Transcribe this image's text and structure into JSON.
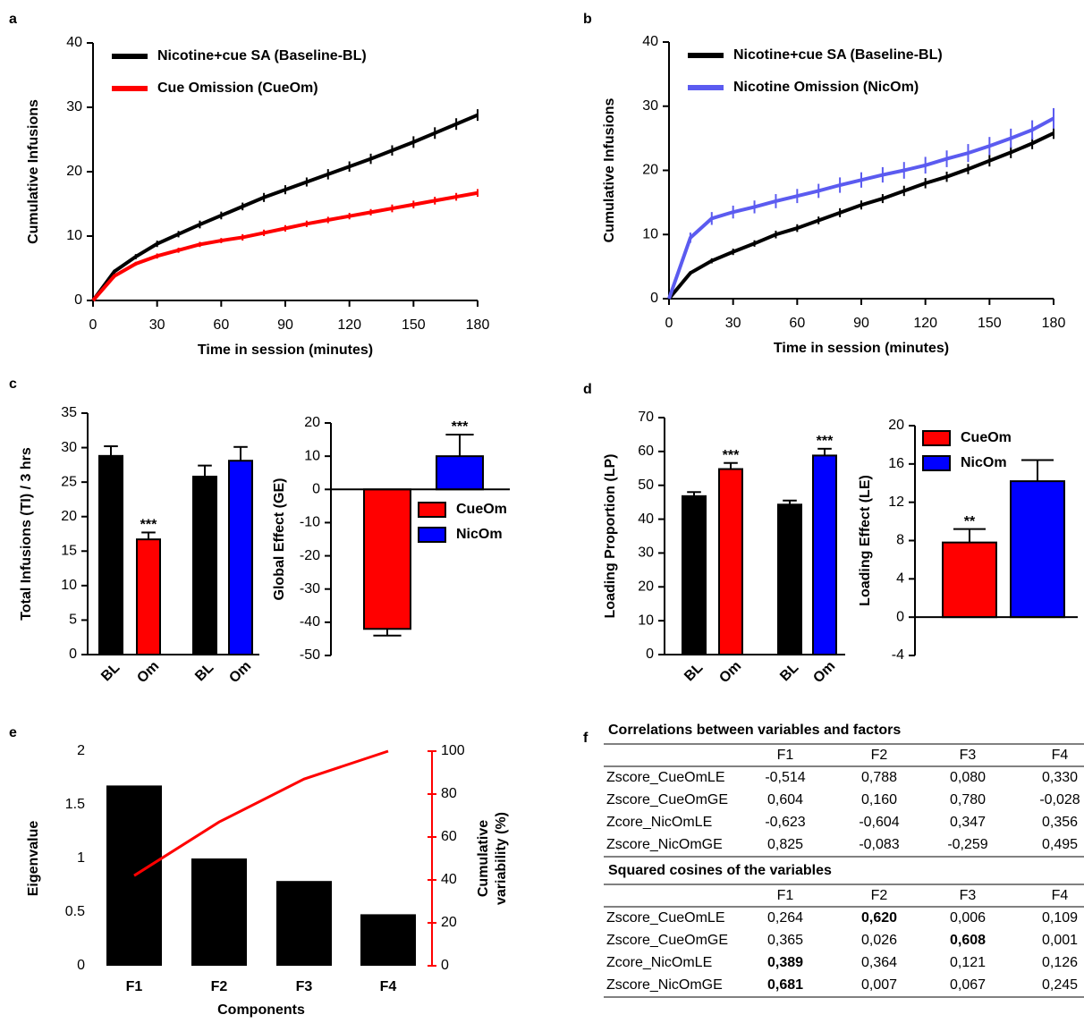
{
  "chart_data": [
    {
      "type": "line",
      "panel": "a",
      "xlabel": "Time in session (minutes)",
      "ylabel": "Cumulative Infusions",
      "x": [
        0,
        10,
        20,
        30,
        40,
        50,
        60,
        70,
        80,
        90,
        100,
        110,
        120,
        130,
        140,
        150,
        160,
        170,
        180
      ],
      "xlim": [
        0,
        180
      ],
      "xticks": [
        0,
        30,
        60,
        90,
        120,
        150,
        180
      ],
      "ylim": [
        0,
        40
      ],
      "yticks": [
        0,
        10,
        20,
        30,
        40
      ],
      "legend": "upper left",
      "series": [
        {
          "name": "Nicotine+cue SA (Baseline-BL)",
          "color": "#000000",
          "values": [
            0,
            4.5,
            6.8,
            8.8,
            10.3,
            11.8,
            13.2,
            14.6,
            16,
            17.2,
            18.4,
            19.6,
            20.8,
            22,
            23.3,
            24.6,
            26,
            27.4,
            28.8
          ],
          "errors": [
            0,
            0.3,
            0.4,
            0.5,
            0.5,
            0.6,
            0.6,
            0.6,
            0.7,
            0.7,
            0.7,
            0.8,
            0.8,
            0.8,
            0.8,
            0.9,
            0.9,
            0.9,
            0.9
          ]
        },
        {
          "name": "Cue Omission (CueOm)",
          "color": "#ff0000",
          "values": [
            0,
            3.8,
            5.7,
            6.9,
            7.8,
            8.7,
            9.3,
            9.8,
            10.5,
            11.2,
            11.9,
            12.5,
            13.1,
            13.7,
            14.3,
            14.9,
            15.5,
            16.1,
            16.7
          ],
          "errors": [
            0,
            0.3,
            0.3,
            0.4,
            0.4,
            0.4,
            0.4,
            0.5,
            0.5,
            0.5,
            0.5,
            0.5,
            0.5,
            0.5,
            0.6,
            0.6,
            0.6,
            0.6,
            0.6
          ]
        }
      ]
    },
    {
      "type": "line",
      "panel": "b",
      "xlabel": "Time in session (minutes)",
      "ylabel": "Cumulative Infusions",
      "x": [
        0,
        10,
        20,
        30,
        40,
        50,
        60,
        70,
        80,
        90,
        100,
        110,
        120,
        130,
        140,
        150,
        160,
        170,
        180
      ],
      "xlim": [
        0,
        180
      ],
      "xticks": [
        0,
        30,
        60,
        90,
        120,
        150,
        180
      ],
      "ylim": [
        0,
        40
      ],
      "yticks": [
        0,
        10,
        20,
        30,
        40
      ],
      "legend": "upper left",
      "series": [
        {
          "name": "Nicotine+cue SA (Baseline-BL)",
          "color": "#000000",
          "values": [
            0,
            4,
            5.9,
            7.3,
            8.6,
            10,
            11,
            12.2,
            13.4,
            14.6,
            15.6,
            16.8,
            18,
            19,
            20.2,
            21.5,
            22.8,
            24.2,
            25.8
          ],
          "errors": [
            0,
            0.3,
            0.4,
            0.5,
            0.5,
            0.6,
            0.6,
            0.6,
            0.7,
            0.7,
            0.7,
            0.8,
            0.8,
            0.8,
            0.8,
            0.9,
            0.9,
            0.9,
            0.9
          ]
        },
        {
          "name": "Nicotine Omission (NicOm)",
          "color": "#5b5bf0",
          "values": [
            0,
            9.5,
            12.5,
            13.5,
            14.3,
            15.2,
            16,
            16.8,
            17.7,
            18.5,
            19.3,
            20,
            20.8,
            21.8,
            22.7,
            23.8,
            25,
            26.3,
            28.1
          ],
          "errors": [
            0,
            0.8,
            1,
            1,
            1,
            1.1,
            1.1,
            1.1,
            1.2,
            1.2,
            1.2,
            1.3,
            1.3,
            1.3,
            1.4,
            1.4,
            1.5,
            1.5,
            1.6
          ]
        }
      ]
    },
    {
      "type": "bar",
      "panel": "c",
      "ylabel": "Total Infusions (TI) / 3 hrs",
      "categories": [
        "BL",
        "Om",
        "BL",
        "Om"
      ],
      "values": [
        28.8,
        16.7,
        25.8,
        28.1
      ],
      "errors": [
        1.4,
        1.0,
        1.6,
        2.0
      ],
      "colors": [
        "#000000",
        "#ff0000",
        "#000000",
        "#0000ff"
      ],
      "ylim": [
        0,
        35
      ],
      "yticks": [
        0,
        5,
        10,
        15,
        20,
        25,
        30,
        35
      ],
      "annotations": [
        {
          "index": 1,
          "text": "***"
        }
      ]
    },
    {
      "type": "bar",
      "ylabel": "Global Effect (GE)",
      "legend": "center right",
      "series": [
        {
          "name": "CueOm",
          "color": "#ff0000",
          "values": [
            -42
          ],
          "errors": [
            2
          ]
        },
        {
          "name": "NicOm",
          "color": "#0000ff",
          "values": [
            10
          ],
          "errors": [
            6.5
          ]
        }
      ],
      "ylim": [
        -50,
        20
      ],
      "yticks": [
        -50,
        -40,
        -30,
        -20,
        -10,
        0,
        10,
        20
      ],
      "annotations": [
        {
          "index": 1,
          "text": "***"
        }
      ]
    },
    {
      "type": "bar",
      "panel": "d",
      "ylabel": "Loading Proportion (LP)",
      "categories": [
        "BL",
        "Om",
        "BL",
        "Om"
      ],
      "values": [
        46.8,
        54.8,
        44.3,
        58.8
      ],
      "errors": [
        1.2,
        1.8,
        1.2,
        2.0
      ],
      "colors": [
        "#000000",
        "#ff0000",
        "#000000",
        "#0000ff"
      ],
      "ylim": [
        0,
        70
      ],
      "yticks": [
        0,
        10,
        20,
        30,
        40,
        50,
        60,
        70
      ],
      "annotations": [
        {
          "index": 1,
          "text": "***"
        },
        {
          "index": 3,
          "text": "***"
        }
      ]
    },
    {
      "type": "bar",
      "ylabel": "Loading Effect (LE)",
      "legend": "upper left",
      "series": [
        {
          "name": "CueOm",
          "color": "#ff0000",
          "values": [
            7.8
          ],
          "errors": [
            1.4
          ]
        },
        {
          "name": "NicOm",
          "color": "#0000ff",
          "values": [
            14.2
          ],
          "errors": [
            2.2
          ]
        }
      ],
      "ylim": [
        -4,
        20
      ],
      "yticks": [
        -4,
        0,
        4,
        8,
        12,
        16,
        20
      ],
      "annotations": [
        {
          "index": 0,
          "text": "**"
        }
      ]
    },
    {
      "type": "bar_line",
      "panel": "e",
      "xlabel": "Components",
      "ylabel": "Eigenvalue",
      "y2label": [
        "Cumulative",
        "variability (%)"
      ],
      "categories": [
        "F1",
        "F2",
        "F3",
        "F4"
      ],
      "series": [
        {
          "color": "#000000",
          "values": [
            1.68,
            1.0,
            0.79,
            0.48
          ]
        },
        {
          "color": "#ff0000",
          "values": [
            42,
            67,
            87,
            100
          ],
          "axis": "y2"
        }
      ],
      "ylim": [
        0,
        2
      ],
      "yticks": [
        0,
        0.5,
        1,
        1.5,
        2
      ],
      "y2lim": [
        0,
        100
      ],
      "y2ticks": [
        0,
        20,
        40,
        60,
        80,
        100
      ]
    }
  ],
  "table_panel": {
    "panel": "f",
    "tables": [
      {
        "title": "Correlations between variables and factors",
        "header": [
          "F1",
          "F2",
          "F3",
          "F4"
        ],
        "rows": [
          {
            "label": "Zscore_CueOmLE",
            "cells": [
              "-0,514",
              "0,788",
              "0,080",
              "0,330"
            ]
          },
          {
            "label": "Zscore_CueOmGE",
            "cells": [
              "0,604",
              "0,160",
              "0,780",
              "-0,028"
            ]
          },
          {
            "label": "Zcore_NicOmLE",
            "cells": [
              "-0,623",
              "-0,604",
              "0,347",
              "0,356"
            ]
          },
          {
            "label": "Zscore_NicOmGE",
            "cells": [
              "0,825",
              "-0,083",
              "-0,259",
              "0,495"
            ]
          }
        ]
      },
      {
        "title": "Squared cosines of the variables",
        "header": [
          "F1",
          "F2",
          "F3",
          "F4"
        ],
        "rows": [
          {
            "label": "Zscore_CueOmLE",
            "cells": [
              "0,264",
              "0,620",
              "0,006",
              "0,109"
            ],
            "bold": 1
          },
          {
            "label": "Zscore_CueOmGE",
            "cells": [
              "0,365",
              "0,026",
              "0,608",
              "0,001"
            ],
            "bold": 2
          },
          {
            "label": "Zcore_NicOmLE",
            "cells": [
              "0,389",
              "0,364",
              "0,121",
              "0,126"
            ],
            "bold": 0
          },
          {
            "label": "Zscore_NicOmGE",
            "cells": [
              "0,681",
              "0,007",
              "0,067",
              "0,245"
            ],
            "bold": 0
          }
        ]
      }
    ]
  }
}
